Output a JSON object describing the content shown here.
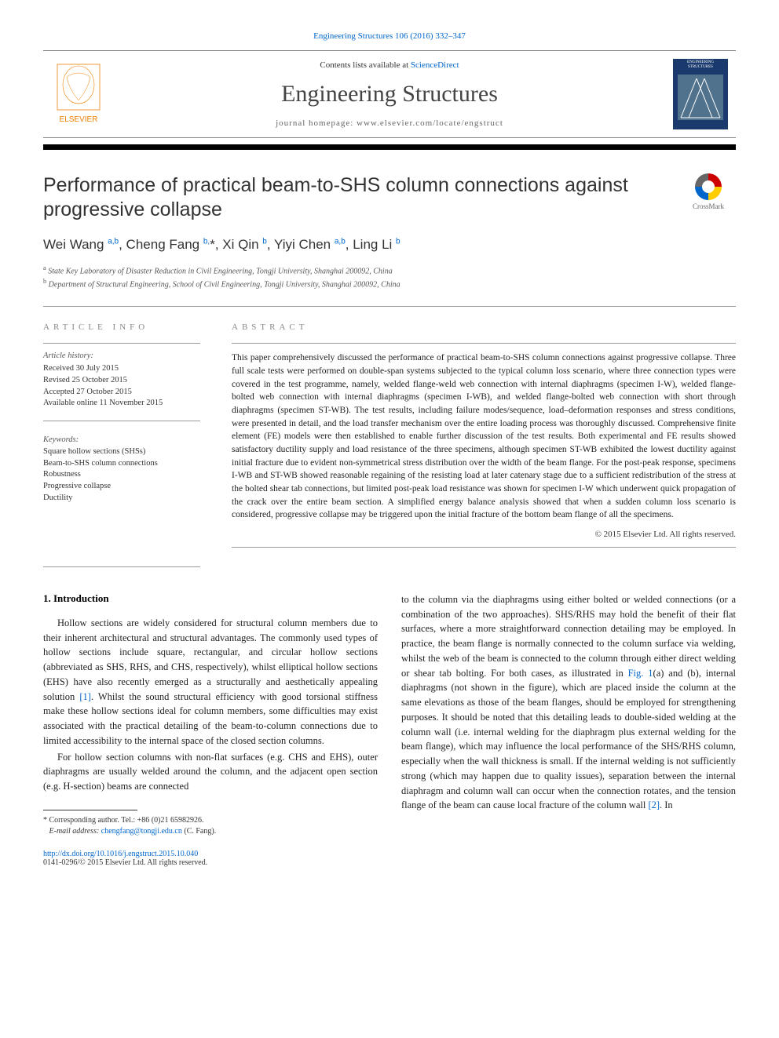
{
  "citation": "Engineering Structures 106 (2016) 332–347",
  "masthead": {
    "contents_prefix": "Contents lists available at ",
    "contents_link": "ScienceDirect",
    "journal_name": "Engineering Structures",
    "homepage_prefix": "journal homepage: ",
    "homepage_url": "www.elsevier.com/locate/engstruct",
    "publisher": "ELSEVIER",
    "cover_label": "ENGINEERING STRUCTURES"
  },
  "crossmark_label": "CrossMark",
  "article": {
    "title": "Performance of practical beam-to-SHS column connections against progressive collapse",
    "authors_html": "Wei Wang <sup>a,b</sup>, Cheng Fang <sup>b,</sup>*, Xi Qin <sup>b</sup>, Yiyi Chen <sup>a,b</sup>, Ling Li <sup>b</sup>",
    "affiliations": [
      {
        "key": "a",
        "text": "State Key Laboratory of Disaster Reduction in Civil Engineering, Tongji University, Shanghai 200092, China"
      },
      {
        "key": "b",
        "text": "Department of Structural Engineering, School of Civil Engineering, Tongji University, Shanghai 200092, China"
      }
    ]
  },
  "info": {
    "label": "ARTICLE INFO",
    "history_label": "Article history:",
    "history": [
      "Received 30 July 2015",
      "Revised 25 October 2015",
      "Accepted 27 October 2015",
      "Available online 11 November 2015"
    ],
    "keywords_label": "Keywords:",
    "keywords": [
      "Square hollow sections (SHSs)",
      "Beam-to-SHS column connections",
      "Robustness",
      "Progressive collapse",
      "Ductility"
    ]
  },
  "abstract": {
    "label": "ABSTRACT",
    "text": "This paper comprehensively discussed the performance of practical beam-to-SHS column connections against progressive collapse. Three full scale tests were performed on double-span systems subjected to the typical column loss scenario, where three connection types were covered in the test programme, namely, welded flange-weld web connection with internal diaphragms (specimen I-W), welded flange-bolted web connection with internal diaphragms (specimen I-WB), and welded flange-bolted web connection with short through diaphragms (specimen ST-WB). The test results, including failure modes/sequence, load–deformation responses and stress conditions, were presented in detail, and the load transfer mechanism over the entire loading process was thoroughly discussed. Comprehensive finite element (FE) models were then established to enable further discussion of the test results. Both experimental and FE results showed satisfactory ductility supply and load resistance of the three specimens, although specimen ST-WB exhibited the lowest ductility against initial fracture due to evident non-symmetrical stress distribution over the width of the beam flange. For the post-peak response, specimens I-WB and ST-WB showed reasonable regaining of the resisting load at later catenary stage due to a sufficient redistribution of the stress at the bolted shear tab connections, but limited post-peak load resistance was shown for specimen I-W which underwent quick propagation of the crack over the entire beam section. A simplified energy balance analysis showed that when a sudden column loss scenario is considered, progressive collapse may be triggered upon the initial fracture of the bottom beam flange of all the specimens.",
    "copyright": "© 2015 Elsevier Ltd. All rights reserved."
  },
  "body": {
    "section_number": "1.",
    "section_title": "Introduction",
    "col1_p1": "Hollow sections are widely considered for structural column members due to their inherent architectural and structural advantages. The commonly used types of hollow sections include square, rectangular, and circular hollow sections (abbreviated as SHS, RHS, and CHS, respectively), whilst elliptical hollow sections (EHS) have also recently emerged as a structurally and aesthetically appealing solution [1]. Whilst the sound structural efficiency with good torsional stiffness make these hollow sections ideal for column members, some difficulties may exist associated with the practical detailing of the beam-to-column connections due to limited accessibility to the internal space of the closed section columns.",
    "col1_p2": "For hollow section columns with non-flat surfaces (e.g. CHS and EHS), outer diaphragms are usually welded around the column, and the adjacent open section (e.g. H-section) beams are connected",
    "col2_p1": "to the column via the diaphragms using either bolted or welded connections (or a combination of the two approaches). SHS/RHS may hold the benefit of their flat surfaces, where a more straightforward connection detailing may be employed. In practice, the beam flange is normally connected to the column surface via welding, whilst the web of the beam is connected to the column through either direct welding or shear tab bolting. For both cases, as illustrated in Fig. 1(a) and (b), internal diaphragms (not shown in the figure), which are placed inside the column at the same elevations as those of the beam flanges, should be employed for strengthening purposes. It should be noted that this detailing leads to double-sided welding at the column wall (i.e. internal welding for the diaphragm plus external welding for the beam flange), which may influence the local performance of the SHS/RHS column, especially when the wall thickness is small. If the internal welding is not sufficiently strong (which may happen due to quality issues), separation between the internal diaphragm and column wall can occur when the connection rotates, and the tension flange of the beam can cause local fracture of the column wall [2]. In"
  },
  "footnote": {
    "corr": "* Corresponding author. Tel.: +86 (0)21 65982926.",
    "email_label": "E-mail address: ",
    "email": "chengfang@tongji.edu.cn",
    "email_suffix": " (C. Fang)."
  },
  "footer": {
    "doi": "http://dx.doi.org/10.1016/j.engstruct.2015.10.040",
    "issn_line": "0141-0296/© 2015 Elsevier Ltd. All rights reserved."
  },
  "colors": {
    "link": "#0066cc",
    "text": "#222222",
    "elsevier_orange": "#ee7f00",
    "cover_blue": "#1a3a6e"
  }
}
